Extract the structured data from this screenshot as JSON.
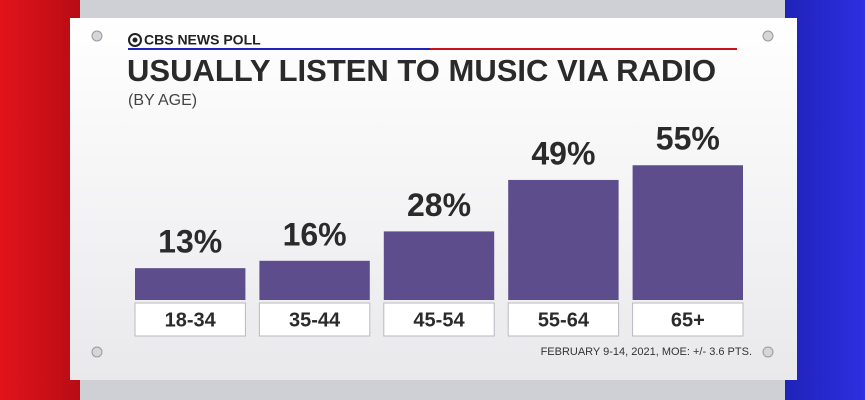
{
  "chart_data": {
    "type": "bar",
    "source": "CBS NEWS POLL",
    "title": "USUALLY LISTEN TO MUSIC VIA RADIO",
    "subtitle": "(BY AGE)",
    "categories": [
      "18-34",
      "35-44",
      "45-54",
      "55-64",
      "65+"
    ],
    "values": [
      13,
      16,
      28,
      49,
      55
    ],
    "value_labels": [
      "13%",
      "16%",
      "28%",
      "49%",
      "55%"
    ],
    "color": "#5e4d8c",
    "note": "FEBRUARY 9-14, 2021, MOE: +/- 3.6 PTS."
  }
}
